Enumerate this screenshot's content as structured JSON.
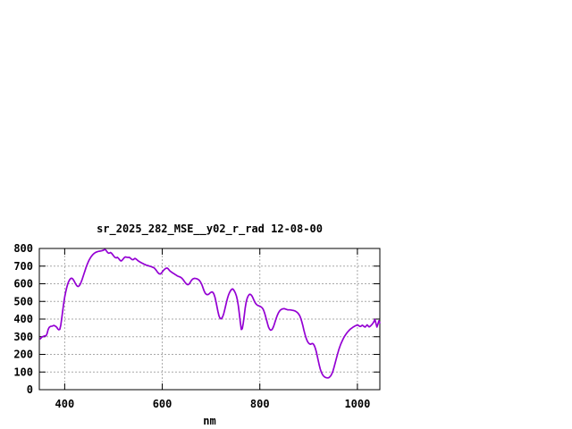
{
  "window": {
    "background": "#ffffff",
    "text_color": "#000000"
  },
  "chart_data": {
    "type": "line",
    "title": "sr_2025_282_MSE__y02_r_rad 12-08-00",
    "xlabel": "nm",
    "ylabel": "",
    "xlim": [
      348,
      1046
    ],
    "ylim": [
      0,
      800
    ],
    "x_ticks": [
      400,
      600,
      800,
      1000
    ],
    "y_ticks": [
      0,
      100,
      200,
      300,
      400,
      500,
      600,
      700,
      800
    ],
    "grid": true,
    "grid_color": "#a8a8a8",
    "border_color": "#000000",
    "legend": "none",
    "line_color": "#9400d3",
    "points": [
      [
        350,
        288
      ],
      [
        352,
        294
      ],
      [
        354,
        299
      ],
      [
        356,
        302
      ],
      [
        358,
        304
      ],
      [
        360,
        305
      ],
      [
        362,
        306
      ],
      [
        364,
        318
      ],
      [
        366,
        340
      ],
      [
        368,
        352
      ],
      [
        370,
        357
      ],
      [
        372,
        359
      ],
      [
        374,
        360
      ],
      [
        376,
        362
      ],
      [
        378,
        364
      ],
      [
        380,
        361
      ],
      [
        382,
        358
      ],
      [
        384,
        352
      ],
      [
        386,
        344
      ],
      [
        388,
        339
      ],
      [
        390,
        342
      ],
      [
        392,
        365
      ],
      [
        394,
        405
      ],
      [
        396,
        448
      ],
      [
        398,
        490
      ],
      [
        400,
        525
      ],
      [
        402,
        553
      ],
      [
        404,
        577
      ],
      [
        406,
        597
      ],
      [
        408,
        612
      ],
      [
        410,
        622
      ],
      [
        412,
        629
      ],
      [
        414,
        632
      ],
      [
        416,
        629
      ],
      [
        418,
        622
      ],
      [
        420,
        612
      ],
      [
        422,
        601
      ],
      [
        424,
        592
      ],
      [
        426,
        586
      ],
      [
        428,
        585
      ],
      [
        430,
        590
      ],
      [
        432,
        599
      ],
      [
        434,
        611
      ],
      [
        436,
        626
      ],
      [
        438,
        643
      ],
      [
        440,
        660
      ],
      [
        442,
        677
      ],
      [
        444,
        694
      ],
      [
        446,
        709
      ],
      [
        448,
        722
      ],
      [
        450,
        734
      ],
      [
        452,
        744
      ],
      [
        454,
        753
      ],
      [
        456,
        760
      ],
      [
        458,
        766
      ],
      [
        460,
        771
      ],
      [
        462,
        775
      ],
      [
        464,
        778
      ],
      [
        466,
        781
      ],
      [
        468,
        783
      ],
      [
        470,
        784
      ],
      [
        472,
        785
      ],
      [
        474,
        786
      ],
      [
        476,
        787
      ],
      [
        478,
        789
      ],
      [
        480,
        791
      ],
      [
        482,
        794
      ],
      [
        484,
        792
      ],
      [
        486,
        785
      ],
      [
        488,
        777
      ],
      [
        490,
        773
      ],
      [
        492,
        774
      ],
      [
        494,
        777
      ],
      [
        496,
        773
      ],
      [
        498,
        766
      ],
      [
        500,
        759
      ],
      [
        502,
        752
      ],
      [
        504,
        748
      ],
      [
        506,
        747
      ],
      [
        508,
        750
      ],
      [
        510,
        745
      ],
      [
        512,
        738
      ],
      [
        514,
        731
      ],
      [
        516,
        729
      ],
      [
        518,
        734
      ],
      [
        520,
        741
      ],
      [
        522,
        748
      ],
      [
        524,
        752
      ],
      [
        526,
        751
      ],
      [
        528,
        750
      ],
      [
        530,
        749
      ],
      [
        532,
        750
      ],
      [
        534,
        747
      ],
      [
        536,
        742
      ],
      [
        538,
        737
      ],
      [
        540,
        736
      ],
      [
        542,
        740
      ],
      [
        544,
        744
      ],
      [
        546,
        741
      ],
      [
        548,
        736
      ],
      [
        550,
        731
      ],
      [
        552,
        727
      ],
      [
        554,
        724
      ],
      [
        556,
        721
      ],
      [
        558,
        718
      ],
      [
        560,
        715
      ],
      [
        562,
        712
      ],
      [
        564,
        710
      ],
      [
        566,
        707
      ],
      [
        568,
        705
      ],
      [
        570,
        704
      ],
      [
        572,
        702
      ],
      [
        574,
        700
      ],
      [
        576,
        698
      ],
      [
        578,
        696
      ],
      [
        580,
        694
      ],
      [
        582,
        692
      ],
      [
        584,
        688
      ],
      [
        586,
        682
      ],
      [
        588,
        675
      ],
      [
        590,
        667
      ],
      [
        592,
        660
      ],
      [
        594,
        656
      ],
      [
        596,
        655
      ],
      [
        598,
        660
      ],
      [
        600,
        667
      ],
      [
        602,
        674
      ],
      [
        604,
        680
      ],
      [
        606,
        685
      ],
      [
        608,
        688
      ],
      [
        610,
        689
      ],
      [
        612,
        685
      ],
      [
        614,
        678
      ],
      [
        616,
        672
      ],
      [
        618,
        668
      ],
      [
        620,
        664
      ],
      [
        622,
        660
      ],
      [
        624,
        657
      ],
      [
        626,
        653
      ],
      [
        628,
        650
      ],
      [
        630,
        646
      ],
      [
        632,
        643
      ],
      [
        634,
        641
      ],
      [
        636,
        639
      ],
      [
        638,
        636
      ],
      [
        640,
        632
      ],
      [
        642,
        626
      ],
      [
        644,
        618
      ],
      [
        646,
        610
      ],
      [
        648,
        603
      ],
      [
        650,
        598
      ],
      [
        652,
        595
      ],
      [
        654,
        596
      ],
      [
        656,
        602
      ],
      [
        658,
        611
      ],
      [
        660,
        620
      ],
      [
        662,
        626
      ],
      [
        664,
        629
      ],
      [
        666,
        631
      ],
      [
        668,
        630
      ],
      [
        670,
        629
      ],
      [
        672,
        627
      ],
      [
        674,
        624
      ],
      [
        676,
        619
      ],
      [
        678,
        612
      ],
      [
        680,
        602
      ],
      [
        682,
        589
      ],
      [
        684,
        573
      ],
      [
        686,
        558
      ],
      [
        688,
        547
      ],
      [
        690,
        541
      ],
      [
        692,
        538
      ],
      [
        694,
        539
      ],
      [
        696,
        543
      ],
      [
        698,
        548
      ],
      [
        700,
        552
      ],
      [
        702,
        554
      ],
      [
        704,
        551
      ],
      [
        706,
        541
      ],
      [
        708,
        524
      ],
      [
        710,
        500
      ],
      [
        712,
        472
      ],
      [
        714,
        444
      ],
      [
        716,
        420
      ],
      [
        718,
        406
      ],
      [
        720,
        401
      ],
      [
        722,
        404
      ],
      [
        724,
        414
      ],
      [
        726,
        430
      ],
      [
        728,
        452
      ],
      [
        730,
        476
      ],
      [
        732,
        500
      ],
      [
        734,
        521
      ],
      [
        736,
        538
      ],
      [
        738,
        551
      ],
      [
        740,
        561
      ],
      [
        742,
        568
      ],
      [
        744,
        571
      ],
      [
        746,
        567
      ],
      [
        748,
        558
      ],
      [
        750,
        547
      ],
      [
        752,
        531
      ],
      [
        754,
        508
      ],
      [
        756,
        474
      ],
      [
        758,
        430
      ],
      [
        760,
        382
      ],
      [
        762,
        341
      ],
      [
        764,
        346
      ],
      [
        766,
        378
      ],
      [
        768,
        420
      ],
      [
        770,
        462
      ],
      [
        772,
        495
      ],
      [
        774,
        517
      ],
      [
        776,
        530
      ],
      [
        778,
        538
      ],
      [
        780,
        541
      ],
      [
        782,
        537
      ],
      [
        784,
        530
      ],
      [
        786,
        519
      ],
      [
        788,
        506
      ],
      [
        790,
        494
      ],
      [
        792,
        486
      ],
      [
        794,
        481
      ],
      [
        796,
        477
      ],
      [
        798,
        475
      ],
      [
        800,
        473
      ],
      [
        802,
        470
      ],
      [
        804,
        466
      ],
      [
        806,
        459
      ],
      [
        808,
        448
      ],
      [
        810,
        432
      ],
      [
        812,
        412
      ],
      [
        814,
        392
      ],
      [
        816,
        371
      ],
      [
        818,
        354
      ],
      [
        820,
        343
      ],
      [
        822,
        337
      ],
      [
        824,
        338
      ],
      [
        826,
        345
      ],
      [
        828,
        357
      ],
      [
        830,
        373
      ],
      [
        832,
        391
      ],
      [
        834,
        408
      ],
      [
        836,
        423
      ],
      [
        838,
        435
      ],
      [
        840,
        444
      ],
      [
        842,
        450
      ],
      [
        844,
        454
      ],
      [
        846,
        457
      ],
      [
        848,
        458
      ],
      [
        850,
        459
      ],
      [
        852,
        457
      ],
      [
        854,
        455
      ],
      [
        856,
        453
      ],
      [
        858,
        452
      ],
      [
        860,
        452
      ],
      [
        862,
        452
      ],
      [
        864,
        451
      ],
      [
        866,
        450
      ],
      [
        868,
        449
      ],
      [
        870,
        448
      ],
      [
        872,
        446
      ],
      [
        874,
        443
      ],
      [
        876,
        439
      ],
      [
        878,
        434
      ],
      [
        880,
        427
      ],
      [
        882,
        417
      ],
      [
        884,
        403
      ],
      [
        886,
        385
      ],
      [
        888,
        364
      ],
      [
        890,
        342
      ],
      [
        892,
        320
      ],
      [
        894,
        300
      ],
      [
        896,
        284
      ],
      [
        898,
        272
      ],
      [
        900,
        264
      ],
      [
        902,
        259
      ],
      [
        904,
        257
      ],
      [
        906,
        260
      ],
      [
        908,
        262
      ],
      [
        910,
        257
      ],
      [
        912,
        247
      ],
      [
        914,
        233
      ],
      [
        916,
        213
      ],
      [
        918,
        188
      ],
      [
        920,
        162
      ],
      [
        922,
        137
      ],
      [
        924,
        116
      ],
      [
        926,
        100
      ],
      [
        928,
        88
      ],
      [
        930,
        79
      ],
      [
        932,
        74
      ],
      [
        934,
        70
      ],
      [
        936,
        68
      ],
      [
        938,
        67
      ],
      [
        940,
        67
      ],
      [
        942,
        69
      ],
      [
        944,
        74
      ],
      [
        946,
        81
      ],
      [
        948,
        92
      ],
      [
        950,
        107
      ],
      [
        952,
        126
      ],
      [
        954,
        147
      ],
      [
        956,
        168
      ],
      [
        958,
        189
      ],
      [
        960,
        209
      ],
      [
        962,
        227
      ],
      [
        964,
        243
      ],
      [
        966,
        258
      ],
      [
        968,
        271
      ],
      [
        970,
        283
      ],
      [
        972,
        294
      ],
      [
        974,
        304
      ],
      [
        976,
        312
      ],
      [
        978,
        320
      ],
      [
        980,
        327
      ],
      [
        982,
        333
      ],
      [
        984,
        339
      ],
      [
        986,
        344
      ],
      [
        988,
        348
      ],
      [
        990,
        352
      ],
      [
        992,
        356
      ],
      [
        994,
        359
      ],
      [
        996,
        362
      ],
      [
        998,
        364
      ],
      [
        1000,
        366
      ],
      [
        1002,
        364
      ],
      [
        1004,
        360
      ],
      [
        1006,
        358
      ],
      [
        1008,
        361
      ],
      [
        1010,
        365
      ],
      [
        1012,
        362
      ],
      [
        1014,
        357
      ],
      [
        1016,
        355
      ],
      [
        1018,
        361
      ],
      [
        1020,
        367
      ],
      [
        1022,
        361
      ],
      [
        1024,
        356
      ],
      [
        1026,
        359
      ],
      [
        1028,
        364
      ],
      [
        1030,
        370
      ],
      [
        1032,
        377
      ],
      [
        1034,
        386
      ],
      [
        1036,
        398
      ],
      [
        1038,
        376
      ],
      [
        1040,
        355
      ],
      [
        1042,
        370
      ],
      [
        1044,
        390
      ],
      [
        1046,
        379
      ]
    ]
  }
}
